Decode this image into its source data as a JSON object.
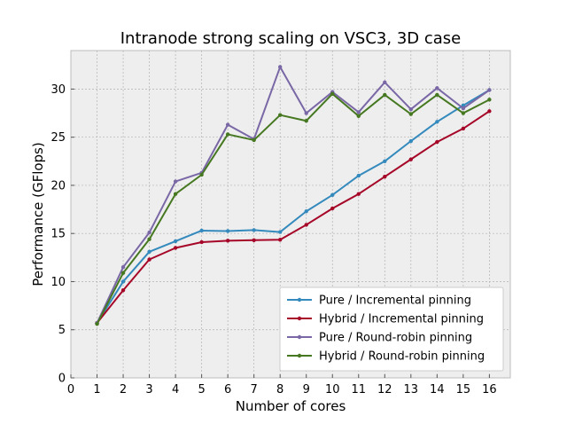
{
  "chart_data": {
    "type": "line",
    "title": "Intranode strong scaling on VSC3, 3D case",
    "xlabel": "Number of cores",
    "ylabel": "Performance (GFlops)",
    "xlim": [
      0,
      16.8
    ],
    "ylim": [
      0,
      34
    ],
    "xticks": [
      0,
      1,
      2,
      3,
      4,
      5,
      6,
      7,
      8,
      9,
      10,
      11,
      12,
      13,
      14,
      15,
      16
    ],
    "yticks": [
      0,
      5,
      10,
      15,
      20,
      25,
      30
    ],
    "grid": true,
    "legend_position": "lower-right",
    "x": [
      1,
      2,
      3,
      4,
      5,
      6,
      7,
      8,
      9,
      10,
      11,
      12,
      13,
      14,
      15,
      16
    ],
    "series": [
      {
        "name": "Pure / Incremental pinning",
        "color": "#348abd",
        "values": [
          5.7,
          10.0,
          13.1,
          14.2,
          15.3,
          15.25,
          15.35,
          15.15,
          17.3,
          19.0,
          21.0,
          22.5,
          24.6,
          26.6,
          28.3,
          29.9
        ]
      },
      {
        "name": "Hybrid / Incremental pinning",
        "color": "#a60628",
        "values": [
          5.7,
          9.1,
          12.3,
          13.5,
          14.1,
          14.25,
          14.3,
          14.35,
          15.9,
          17.6,
          19.1,
          20.9,
          22.7,
          24.5,
          25.9,
          27.7
        ]
      },
      {
        "name": "Pure / Round-robin pinning",
        "color": "#7a68a6",
        "values": [
          5.7,
          11.5,
          15.1,
          20.4,
          21.3,
          26.3,
          24.8,
          32.3,
          27.5,
          29.7,
          27.6,
          30.7,
          27.9,
          30.1,
          28.0,
          29.9
        ]
      },
      {
        "name": "Hybrid / Round-robin pinning",
        "color": "#467821",
        "values": [
          5.6,
          10.9,
          14.4,
          19.1,
          21.1,
          25.3,
          24.7,
          27.3,
          26.7,
          29.5,
          27.2,
          29.4,
          27.4,
          29.4,
          27.5,
          28.9
        ]
      }
    ]
  },
  "style": {
    "plot_background": "#eeeeee",
    "grid_color": "#b2b2b2",
    "frame_color": "#bcbcbc",
    "legend_background": "#ffffff"
  }
}
